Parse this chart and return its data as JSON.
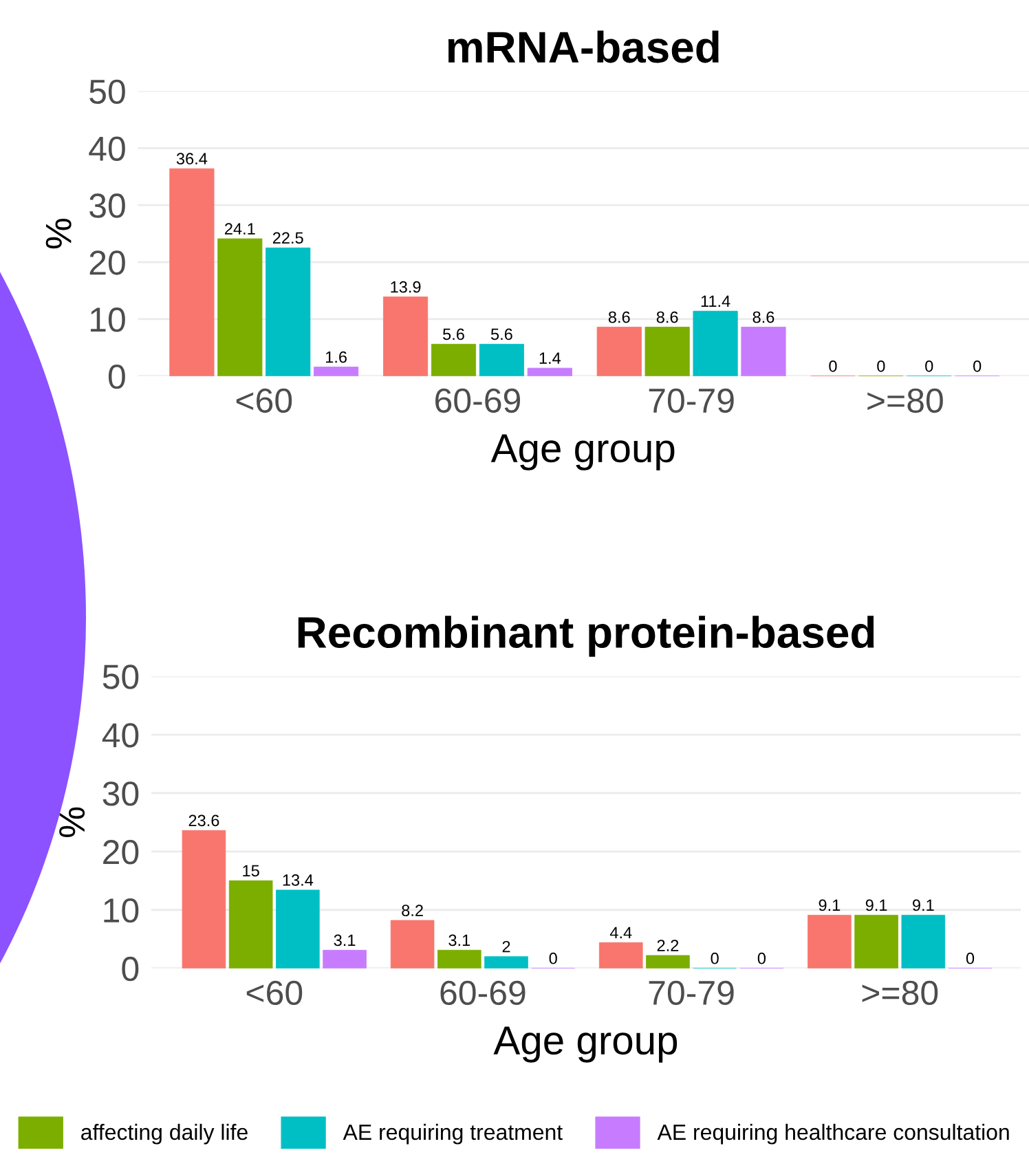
{
  "chart_data": [
    {
      "type": "bar",
      "title": "mRNA-based",
      "xlabel": "Age group",
      "ylabel": "%",
      "categories": [
        "<60",
        "60-69",
        "70-79",
        ">=80"
      ],
      "series": [
        {
          "color": "#f8766d",
          "values": [
            36.4,
            13.9,
            8.6,
            0
          ]
        },
        {
          "name": "affecting daily life",
          "color": "#7cae00",
          "values": [
            24.1,
            5.6,
            8.6,
            0
          ]
        },
        {
          "name": "AE requiring treatment",
          "color": "#00bfc4",
          "values": [
            22.5,
            5.6,
            11.4,
            0
          ]
        },
        {
          "name": "AE requiring healthcare consultation",
          "color": "#c77cff",
          "values": [
            1.6,
            1.4,
            8.6,
            0
          ]
        }
      ],
      "ylim": [
        0,
        50
      ],
      "yticks": [
        0,
        10,
        20,
        30,
        40,
        50
      ],
      "grid": "y",
      "data_labels": true,
      "legend": "bottom"
    },
    {
      "type": "bar",
      "title": "Recombinant protein-based",
      "xlabel": "Age group",
      "ylabel": "%",
      "categories": [
        "<60",
        "60-69",
        "70-79",
        ">=80"
      ],
      "series": [
        {
          "color": "#f8766d",
          "values": [
            23.6,
            8.2,
            4.4,
            9.1
          ]
        },
        {
          "name": "affecting daily life",
          "color": "#7cae00",
          "values": [
            15,
            3.1,
            2.2,
            9.1
          ]
        },
        {
          "name": "AE requiring treatment",
          "color": "#00bfc4",
          "values": [
            13.4,
            2,
            0,
            9.1
          ]
        },
        {
          "name": "AE requiring healthcare consultation",
          "color": "#c77cff",
          "values": [
            3.1,
            0,
            0,
            0
          ]
        }
      ],
      "ylim": [
        0,
        50
      ],
      "yticks": [
        0,
        10,
        20,
        30,
        40,
        50
      ],
      "grid": "y",
      "data_labels": true,
      "legend": "bottom"
    }
  ]
}
